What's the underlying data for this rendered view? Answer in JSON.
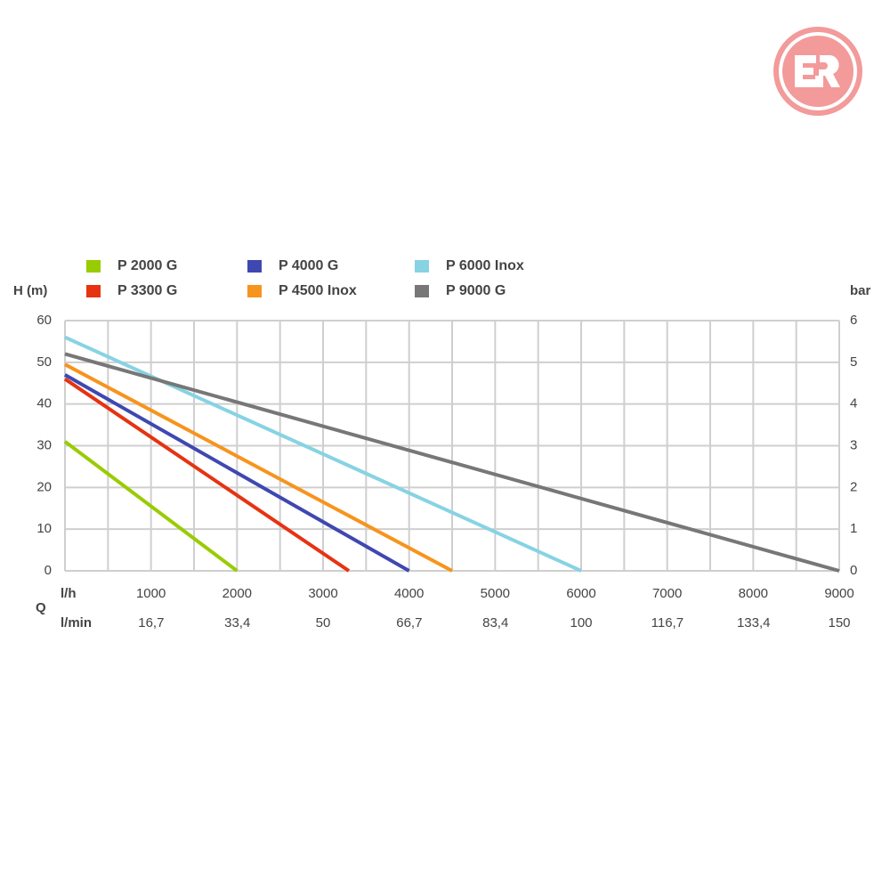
{
  "chart_data": {
    "type": "line",
    "y_label": "H (m)",
    "y2_label": "bar",
    "x_label": "Q",
    "x_unit": "l/h",
    "x2_unit": "l/min",
    "xlim": [
      0,
      9000
    ],
    "xticks": [
      1000,
      2000,
      3000,
      4000,
      5000,
      6000,
      7000,
      8000,
      9000
    ],
    "xminorticks": [
      500,
      1500,
      2500,
      3500,
      4500,
      5500,
      6500,
      7500,
      8500
    ],
    "x2lim": [
      0,
      150
    ],
    "x2ticks": [
      {
        "value": 16.7,
        "label": "16,7"
      },
      {
        "value": 33.4,
        "label": "33,4"
      },
      50,
      {
        "value": 66.7,
        "label": "66,7"
      },
      {
        "value": 83.4,
        "label": "83,4"
      },
      100,
      {
        "value": 116.7,
        "label": "116,7"
      },
      {
        "value": 133.4,
        "label": "133,4"
      },
      150
    ],
    "ylim": [
      0,
      60
    ],
    "yticks": [
      0,
      10,
      20,
      30,
      40,
      50,
      60
    ],
    "y2lim": [
      0,
      6
    ],
    "y2ticks": [
      0,
      1,
      2,
      3,
      4,
      5,
      6
    ],
    "grid": true,
    "series": [
      {
        "name": "P 2000 G",
        "color": "#99cc00",
        "x": [
          0,
          2000
        ],
        "values": [
          31,
          0
        ]
      },
      {
        "name": "P 3300 G",
        "color": "#e63312",
        "x": [
          0,
          3300
        ],
        "values": [
          46,
          0
        ]
      },
      {
        "name": "P 4000 G",
        "color": "#3f48b0",
        "x": [
          0,
          4000
        ],
        "values": [
          47,
          0
        ]
      },
      {
        "name": "P 4500 Inox",
        "color": "#f7941d",
        "x": [
          0,
          4500
        ],
        "values": [
          49.5,
          0
        ]
      },
      {
        "name": "P 6000 Inox",
        "color": "#86d3e3",
        "x": [
          0,
          6000
        ],
        "values": [
          56,
          0
        ]
      },
      {
        "name": "P 9000 G",
        "color": "#777777",
        "x": [
          0,
          9000
        ],
        "values": [
          52,
          0
        ]
      }
    ]
  }
}
